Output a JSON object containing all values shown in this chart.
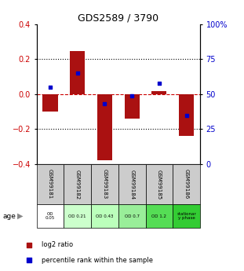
{
  "title": "GDS2589 / 3790",
  "samples": [
    "GSM99181",
    "GSM99182",
    "GSM99183",
    "GSM99184",
    "GSM99185",
    "GSM99186"
  ],
  "log2_ratio": [
    -0.1,
    0.245,
    -0.38,
    -0.14,
    0.018,
    -0.24
  ],
  "percentile_rank": [
    55,
    65,
    43,
    49,
    58,
    35
  ],
  "age_labels": [
    "OD\n0.05",
    "OD 0.21",
    "OD 0.43",
    "OD 0.7",
    "OD 1.2",
    "stationar\ny phase"
  ],
  "age_colors": [
    "#ffffff",
    "#ccffcc",
    "#bbffbb",
    "#99ee99",
    "#55dd55",
    "#33cc33"
  ],
  "bar_color": "#aa1111",
  "dot_color": "#0000cc",
  "ylim_left": [
    -0.4,
    0.4
  ],
  "ylim_right": [
    0,
    100
  ],
  "right_ticks": [
    0,
    25,
    50,
    75,
    100
  ],
  "right_tick_labels": [
    "0",
    "25",
    "50",
    "75",
    "100%"
  ],
  "left_ticks": [
    -0.4,
    -0.2,
    0.0,
    0.2,
    0.4
  ],
  "bar_width": 0.55,
  "legend_red": "log2 ratio",
  "legend_blue": "percentile rank within the sample",
  "left_tick_color": "#cc0000",
  "right_tick_color": "#0000cc",
  "sample_bg_color": "#cccccc",
  "dashed_line_color": "#cc0000",
  "dotted_line_color": "#000000"
}
